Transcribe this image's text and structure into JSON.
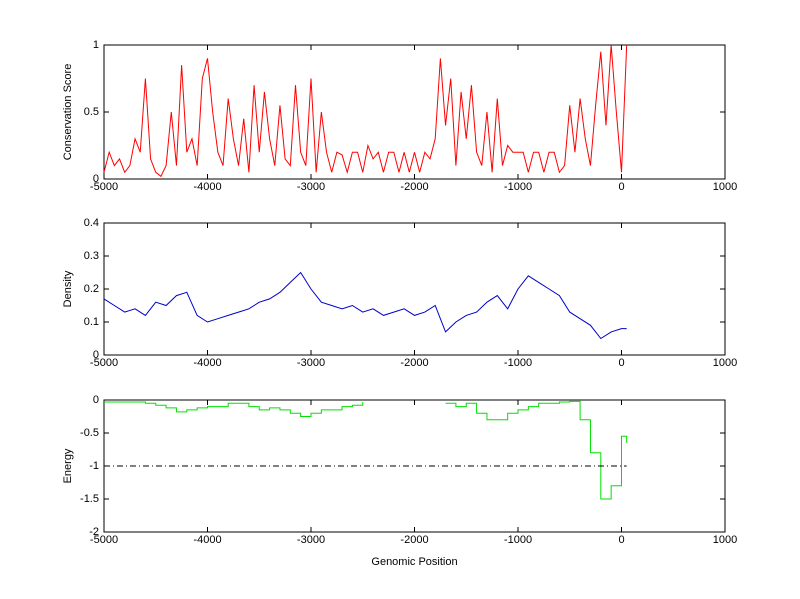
{
  "chart_data": [
    {
      "type": "line",
      "ylabel": "Conservation Score",
      "xlim": [
        -5000,
        1000
      ],
      "xticks": [
        -5000,
        -4000,
        -3000,
        -2000,
        -1000,
        0,
        1000
      ],
      "ylim": [
        0,
        1
      ],
      "yticks": [
        0,
        0.5,
        1
      ],
      "series": [
        {
          "color": "#ff0000",
          "x": [
            -5000,
            -4950,
            -4900,
            -4850,
            -4800,
            -4750,
            -4700,
            -4650,
            -4600,
            -4550,
            -4500,
            -4450,
            -4400,
            -4350,
            -4300,
            -4250,
            -4200,
            -4150,
            -4100,
            -4050,
            -4000,
            -3950,
            -3900,
            -3850,
            -3800,
            -3750,
            -3700,
            -3650,
            -3600,
            -3550,
            -3500,
            -3450,
            -3400,
            -3350,
            -3300,
            -3250,
            -3200,
            -3150,
            -3100,
            -3050,
            -3000,
            -2950,
            -2900,
            -2850,
            -2800,
            -2750,
            -2700,
            -2650,
            -2600,
            -2550,
            -2500,
            -2450,
            -2400,
            -2350,
            -2300,
            -2250,
            -2200,
            -2150,
            -2100,
            -2050,
            -2000,
            -1950,
            -1900,
            -1850,
            -1800,
            -1750,
            -1700,
            -1650,
            -1600,
            -1550,
            -1500,
            -1450,
            -1400,
            -1350,
            -1300,
            -1250,
            -1200,
            -1150,
            -1100,
            -1050,
            -1000,
            -950,
            -900,
            -850,
            -800,
            -750,
            -700,
            -650,
            -600,
            -550,
            -500,
            -450,
            -400,
            -350,
            -300,
            -250,
            -200,
            -150,
            -100,
            -50,
            0,
            50
          ],
          "values": [
            0.05,
            0.2,
            0.1,
            0.15,
            0.05,
            0.1,
            0.3,
            0.2,
            0.75,
            0.15,
            0.05,
            0.02,
            0.1,
            0.5,
            0.1,
            0.85,
            0.2,
            0.3,
            0.1,
            0.75,
            0.9,
            0.5,
            0.2,
            0.1,
            0.6,
            0.3,
            0.1,
            0.45,
            0.05,
            0.7,
            0.2,
            0.65,
            0.3,
            0.1,
            0.55,
            0.15,
            0.1,
            0.7,
            0.2,
            0.1,
            0.75,
            0.05,
            0.5,
            0.2,
            0.05,
            0.2,
            0.18,
            0.05,
            0.2,
            0.2,
            0.05,
            0.25,
            0.15,
            0.2,
            0.05,
            0.2,
            0.2,
            0.05,
            0.2,
            0.05,
            0.2,
            0.05,
            0.2,
            0.15,
            0.3,
            0.9,
            0.4,
            0.75,
            0.1,
            0.65,
            0.3,
            0.7,
            0.2,
            0.1,
            0.5,
            0.05,
            0.6,
            0.1,
            0.25,
            0.2,
            0.2,
            0.2,
            0.05,
            0.2,
            0.2,
            0.05,
            0.2,
            0.2,
            0.05,
            0.1,
            0.55,
            0.2,
            0.6,
            0.3,
            0.1,
            0.55,
            0.95,
            0.4,
            1,
            0.5,
            0.05,
            1
          ]
        }
      ]
    },
    {
      "type": "line",
      "ylabel": "Density",
      "xlim": [
        -5000,
        1000
      ],
      "xticks": [
        -5000,
        -4000,
        -3000,
        -2000,
        -1000,
        0,
        1000
      ],
      "ylim": [
        0,
        0.4
      ],
      "yticks": [
        0,
        0.1,
        0.2,
        0.3,
        0.4
      ],
      "series": [
        {
          "color": "#0000c8",
          "x": [
            -5000,
            -4900,
            -4800,
            -4700,
            -4600,
            -4500,
            -4400,
            -4300,
            -4200,
            -4100,
            -4000,
            -3900,
            -3800,
            -3700,
            -3600,
            -3500,
            -3400,
            -3300,
            -3200,
            -3100,
            -3000,
            -2900,
            -2800,
            -2700,
            -2600,
            -2500,
            -2400,
            -2300,
            -2200,
            -2100,
            -2000,
            -1900,
            -1800,
            -1700,
            -1600,
            -1500,
            -1400,
            -1300,
            -1200,
            -1100,
            -1000,
            -900,
            -800,
            -700,
            -600,
            -500,
            -400,
            -300,
            -200,
            -100,
            0,
            50
          ],
          "values": [
            0.17,
            0.15,
            0.13,
            0.14,
            0.12,
            0.16,
            0.15,
            0.18,
            0.19,
            0.12,
            0.1,
            0.11,
            0.12,
            0.13,
            0.14,
            0.16,
            0.17,
            0.19,
            0.22,
            0.25,
            0.2,
            0.16,
            0.15,
            0.14,
            0.15,
            0.13,
            0.14,
            0.12,
            0.13,
            0.14,
            0.12,
            0.13,
            0.15,
            0.07,
            0.1,
            0.12,
            0.13,
            0.16,
            0.18,
            0.14,
            0.2,
            0.24,
            0.22,
            0.2,
            0.18,
            0.13,
            0.11,
            0.09,
            0.05,
            0.07,
            0.08,
            0.08
          ]
        }
      ]
    },
    {
      "type": "line",
      "ylabel": "Energy",
      "xlabel": "Genomic Position",
      "xlim": [
        -5000,
        1000
      ],
      "xticks": [
        -5000,
        -4000,
        -3000,
        -2000,
        -1000,
        0,
        1000
      ],
      "ylim": [
        -2,
        0
      ],
      "yticks": [
        -2,
        -1.5,
        -1,
        -0.5,
        0
      ],
      "series": [
        {
          "color": "#00e000",
          "drawstyle": "steps",
          "x": [
            -5000,
            -4900,
            -4800,
            -4700,
            -4600,
            -4500,
            -4400,
            -4300,
            -4200,
            -4100,
            -4000,
            -3900,
            -3800,
            -3700,
            -3600,
            -3500,
            -3400,
            -3300,
            -3200,
            -3100,
            -3000,
            -2900,
            -2800,
            -2700,
            -2600,
            -2500,
            -2400,
            -2300,
            -2200,
            -2100,
            -2000,
            -1900,
            -1800,
            -1700,
            -1600,
            -1500,
            -1400,
            -1300,
            -1200,
            -1100,
            -1000,
            -900,
            -800,
            -700,
            -600,
            -500,
            -400,
            -300,
            -200,
            -100,
            0,
            50
          ],
          "values": [
            -0.03,
            -0.03,
            -0.03,
            -0.03,
            -0.05,
            -0.08,
            -0.12,
            -0.18,
            -0.15,
            -0.12,
            -0.1,
            -0.1,
            -0.05,
            -0.05,
            -0.1,
            -0.15,
            -0.12,
            -0.15,
            -0.2,
            -0.25,
            -0.2,
            -0.15,
            -0.15,
            -0.1,
            -0.08,
            -0.03,
            null,
            null,
            null,
            null,
            null,
            null,
            null,
            -0.05,
            -0.1,
            -0.05,
            -0.2,
            -0.3,
            -0.3,
            -0.2,
            -0.15,
            -0.1,
            -0.05,
            -0.05,
            -0.03,
            -0.02,
            -0.3,
            -0.8,
            -1.5,
            -1.3,
            -0.55,
            -0.65
          ]
        },
        {
          "color": "#000000",
          "linestyle": "dashdot",
          "x": [
            -5000,
            50
          ],
          "values": [
            -1,
            -1
          ]
        }
      ]
    }
  ]
}
